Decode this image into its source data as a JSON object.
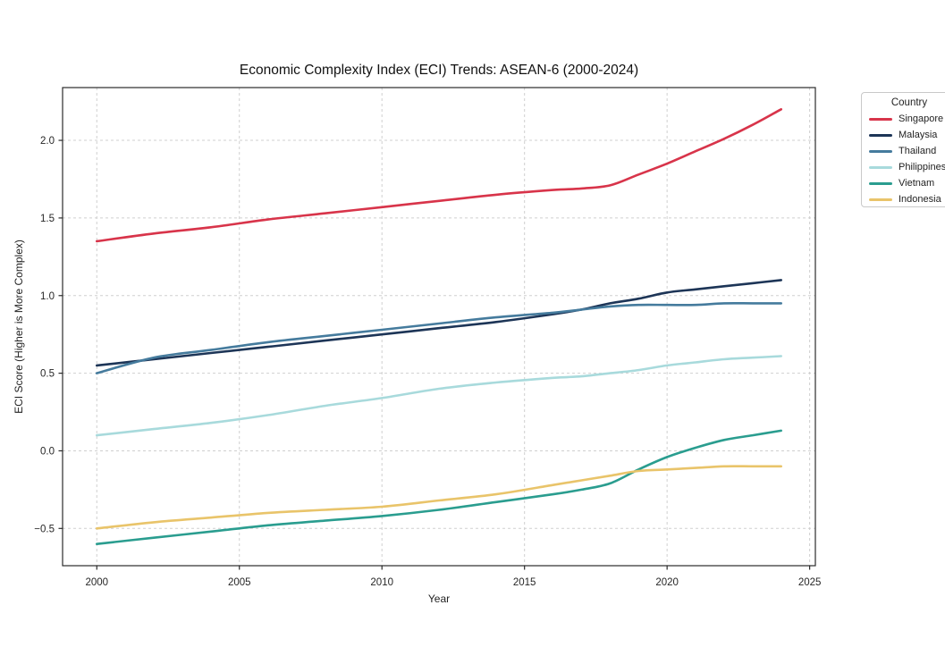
{
  "chart_data": {
    "type": "line",
    "title": "Economic Complexity Index (ECI) Trends: ASEAN-6 (2000-2024)",
    "xlabel": "Year",
    "ylabel": "ECI Score (Higher is More Complex)",
    "legend_title": "Country",
    "legend_position": "right",
    "grid": true,
    "xlim": [
      1998.8,
      2025.2
    ],
    "ylim": [
      -0.74,
      2.34
    ],
    "xticks": [
      2000,
      2005,
      2010,
      2015,
      2020,
      2025
    ],
    "xtick_labels": [
      "2000",
      "2005",
      "2010",
      "2015",
      "2020",
      "2025"
    ],
    "yticks": [
      2.0,
      1.5,
      1.0,
      0.5,
      0.0,
      -0.5
    ],
    "ytick_labels": [
      "2.0",
      "1.5",
      "1.0",
      "0.5",
      "0.0",
      "−0.5"
    ],
    "x": [
      2000,
      2002,
      2004,
      2006,
      2008,
      2010,
      2012,
      2014,
      2016,
      2017,
      2018,
      2019,
      2020,
      2021,
      2022,
      2023,
      2024
    ],
    "series": [
      {
        "name": "Singapore",
        "color": "#d8344a",
        "values": [
          1.35,
          1.4,
          1.44,
          1.49,
          1.53,
          1.57,
          1.61,
          1.65,
          1.68,
          1.69,
          1.71,
          1.78,
          1.85,
          1.93,
          2.01,
          2.1,
          2.2
        ]
      },
      {
        "name": "Malaysia",
        "color": "#1d3557",
        "values": [
          0.55,
          0.59,
          0.63,
          0.67,
          0.71,
          0.75,
          0.79,
          0.83,
          0.88,
          0.91,
          0.95,
          0.98,
          1.02,
          1.04,
          1.06,
          1.08,
          1.1
        ]
      },
      {
        "name": "Thailand",
        "color": "#457b9d",
        "values": [
          0.5,
          0.6,
          0.65,
          0.7,
          0.74,
          0.78,
          0.82,
          0.86,
          0.89,
          0.91,
          0.93,
          0.94,
          0.94,
          0.94,
          0.95,
          0.95,
          0.95
        ]
      },
      {
        "name": "Philippines",
        "color": "#a8dadc",
        "values": [
          0.1,
          0.14,
          0.18,
          0.23,
          0.29,
          0.34,
          0.4,
          0.44,
          0.47,
          0.48,
          0.5,
          0.52,
          0.55,
          0.57,
          0.59,
          0.6,
          0.61
        ]
      },
      {
        "name": "Vietnam",
        "color": "#2a9d8f",
        "values": [
          -0.6,
          -0.56,
          -0.52,
          -0.48,
          -0.45,
          -0.42,
          -0.38,
          -0.33,
          -0.28,
          -0.25,
          -0.21,
          -0.12,
          -0.04,
          0.02,
          0.07,
          0.1,
          0.13
        ]
      },
      {
        "name": "Indonesia",
        "color": "#e9c46a",
        "values": [
          -0.5,
          -0.46,
          -0.43,
          -0.4,
          -0.38,
          -0.36,
          -0.32,
          -0.28,
          -0.22,
          -0.19,
          -0.16,
          -0.13,
          -0.12,
          -0.11,
          -0.1,
          -0.1,
          -0.1
        ]
      }
    ]
  }
}
